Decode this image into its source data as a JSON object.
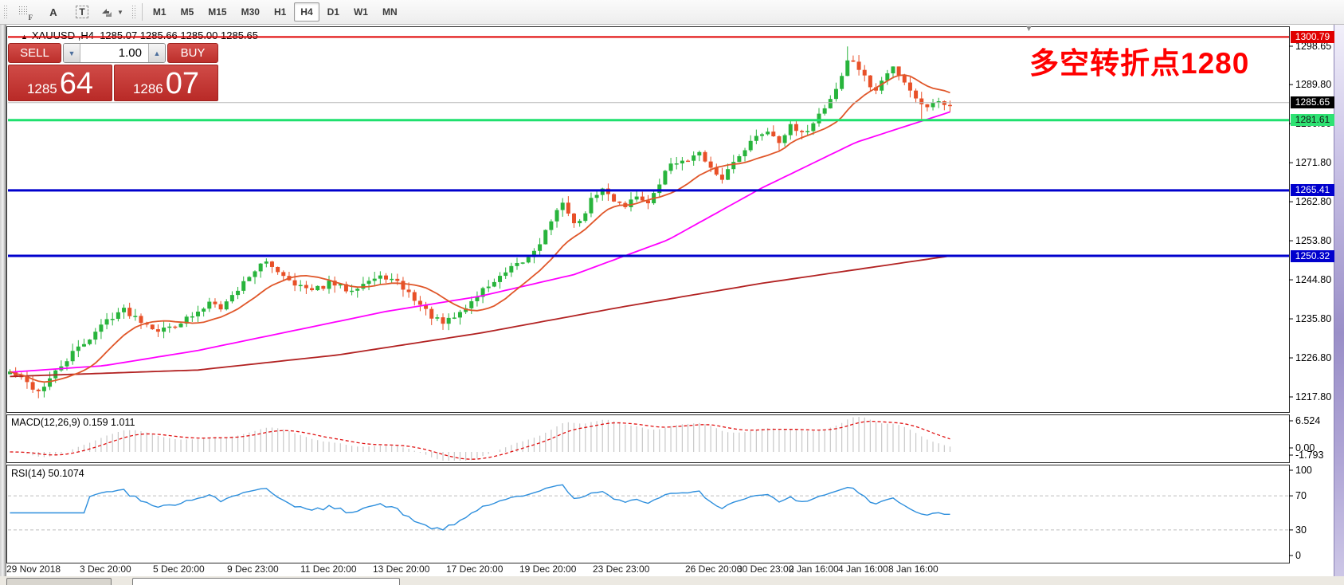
{
  "toolbar": {
    "grip_f": "F",
    "tool_a": "A",
    "tool_t": "T",
    "timeframes": [
      "M1",
      "M5",
      "M15",
      "M30",
      "H1",
      "H4",
      "D1",
      "W1",
      "MN"
    ],
    "active": "H4"
  },
  "chart": {
    "title": "XAUUSD ,H4",
    "ohlc_text": "1285.07 1285.66 1285.00 1285.65",
    "annotation": "多空转折点1280",
    "marker": "▲",
    "shift_marker": "▼"
  },
  "trade_panel": {
    "sell_label": "SELL",
    "buy_label": "BUY",
    "volume": "1.00",
    "spin_down": "▼",
    "spin_up": "▲",
    "sell_small": "1285",
    "sell_big": "64",
    "buy_small": "1286",
    "buy_big": "07"
  },
  "panes": {
    "macd_label": "MACD(12,26,9) 0.159 1.011",
    "rsi_label": "RSI(14) 50.1074"
  },
  "chart_data": {
    "type": "candlestick",
    "symbol": "XAUUSD",
    "timeframe": "H4",
    "visible_price_range": [
      1213.5,
      1302.5
    ],
    "ohlc_current": {
      "open": 1285.07,
      "high": 1285.66,
      "low": 1285.0,
      "close": 1285.65
    },
    "candles_count": 166,
    "candle_colors": {
      "bull": "#28b43c",
      "bear": "#e85028"
    },
    "close_path_keypoints": [
      [
        0.0,
        1223.5
      ],
      [
        0.015,
        1221.5
      ],
      [
        0.03,
        1219.0
      ],
      [
        0.045,
        1222.5
      ],
      [
        0.065,
        1227.5
      ],
      [
        0.085,
        1231.5
      ],
      [
        0.105,
        1236.0
      ],
      [
        0.12,
        1238.0
      ],
      [
        0.14,
        1235.5
      ],
      [
        0.16,
        1233.0
      ],
      [
        0.18,
        1235.0
      ],
      [
        0.2,
        1237.0
      ],
      [
        0.215,
        1240.5
      ],
      [
        0.225,
        1238.5
      ],
      [
        0.24,
        1242.0
      ],
      [
        0.255,
        1246.0
      ],
      [
        0.27,
        1248.8
      ],
      [
        0.285,
        1247.0
      ],
      [
        0.3,
        1244.5
      ],
      [
        0.32,
        1242.0
      ],
      [
        0.34,
        1244.0
      ],
      [
        0.36,
        1242.5
      ],
      [
        0.38,
        1244.5
      ],
      [
        0.4,
        1245.5
      ],
      [
        0.415,
        1243.5
      ],
      [
        0.43,
        1240.5
      ],
      [
        0.445,
        1237.0
      ],
      [
        0.46,
        1234.5
      ],
      [
        0.475,
        1236.5
      ],
      [
        0.49,
        1239.5
      ],
      [
        0.505,
        1243.0
      ],
      [
        0.52,
        1245.0
      ],
      [
        0.535,
        1247.5
      ],
      [
        0.55,
        1249.5
      ],
      [
        0.565,
        1254.0
      ],
      [
        0.578,
        1259.5
      ],
      [
        0.59,
        1262.5
      ],
      [
        0.603,
        1256.5
      ],
      [
        0.615,
        1262.0
      ],
      [
        0.628,
        1266.0
      ],
      [
        0.64,
        1263.5
      ],
      [
        0.655,
        1262.0
      ],
      [
        0.668,
        1264.5
      ],
      [
        0.68,
        1262.0
      ],
      [
        0.693,
        1268.0
      ],
      [
        0.705,
        1272.5
      ],
      [
        0.718,
        1271.5
      ],
      [
        0.73,
        1275.0
      ],
      [
        0.742,
        1271.0
      ],
      [
        0.755,
        1267.5
      ],
      [
        0.768,
        1271.5
      ],
      [
        0.78,
        1275.0
      ],
      [
        0.793,
        1277.5
      ],
      [
        0.805,
        1279.5
      ],
      [
        0.818,
        1277.0
      ],
      [
        0.83,
        1280.0
      ],
      [
        0.843,
        1278.0
      ],
      [
        0.855,
        1281.5
      ],
      [
        0.868,
        1285.0
      ],
      [
        0.878,
        1288.5
      ],
      [
        0.885,
        1292.0
      ],
      [
        0.893,
        1296.2
      ],
      [
        0.9,
        1294.5
      ],
      [
        0.91,
        1291.0
      ],
      [
        0.92,
        1288.0
      ],
      [
        0.93,
        1291.5
      ],
      [
        0.94,
        1294.0
      ],
      [
        0.95,
        1291.0
      ],
      [
        0.96,
        1288.0
      ],
      [
        0.972,
        1284.3
      ],
      [
        0.982,
        1286.2
      ],
      [
        0.992,
        1285.3
      ],
      [
        1.0,
        1285.65
      ]
    ],
    "wick_events": [
      {
        "t": 0.03,
        "low": 1217.5
      },
      {
        "t": 0.893,
        "high": 1298.6
      },
      {
        "t": 0.972,
        "low": 1281.7
      }
    ],
    "horizontal_levels": [
      {
        "price": 1300.79,
        "label": "1300.79",
        "color": "#e00000",
        "width": 2,
        "badge_bg": "#e00000",
        "badge_fg": "#ffffff"
      },
      {
        "price": 1281.61,
        "label": "1281.61",
        "color": "#1fe06e",
        "width": 3,
        "badge_bg": "#2ee273",
        "badge_fg": "#141414"
      },
      {
        "price": 1265.41,
        "label": "1265.41",
        "color": "#0000cd",
        "width": 3,
        "badge_bg": "#0000cd",
        "badge_fg": "#ffffff"
      },
      {
        "price": 1250.32,
        "label": "1250.32",
        "color": "#0000cd",
        "width": 3,
        "badge_bg": "#0000cd",
        "badge_fg": "#ffffff"
      }
    ],
    "current_price": {
      "price": 1285.65,
      "label": "1285.65",
      "line_color": "#b8b8b8",
      "badge_bg": "#000000",
      "badge_fg": "#ffffff"
    },
    "price_ticks": [
      "1298.65",
      "1289.80",
      "1280.80",
      "1271.80",
      "1262.80",
      "1253.80",
      "1244.80",
      "1235.80",
      "1226.80",
      "1217.80"
    ],
    "moving_averages": {
      "fast": {
        "color": "#e0572a",
        "period": 12
      },
      "mid": {
        "color": "#ff00ff",
        "keypoints": [
          [
            0,
            1223.5
          ],
          [
            0.1,
            1225.0
          ],
          [
            0.2,
            1228.5
          ],
          [
            0.3,
            1233.0
          ],
          [
            0.4,
            1237.5
          ],
          [
            0.5,
            1241.0
          ],
          [
            0.55,
            1243.5
          ],
          [
            0.6,
            1246.0
          ],
          [
            0.7,
            1254.0
          ],
          [
            0.8,
            1266.0
          ],
          [
            0.9,
            1276.5
          ],
          [
            1,
            1283.5
          ]
        ]
      },
      "slow": {
        "color": "#b22222",
        "keypoints": [
          [
            0,
            1222.5
          ],
          [
            0.2,
            1224.0
          ],
          [
            0.35,
            1227.5
          ],
          [
            0.5,
            1232.5
          ],
          [
            0.65,
            1238.5
          ],
          [
            0.8,
            1244.0
          ],
          [
            1,
            1250.3
          ]
        ]
      }
    },
    "macd": {
      "fast": 12,
      "slow": 26,
      "signal": 9,
      "main_value": 0.159,
      "signal_value": 1.011,
      "hist_color": "#c8c8c8",
      "signal_color": "#e01010",
      "axis_labels": [
        "6.524",
        "0.00",
        "-1.793"
      ]
    },
    "rsi": {
      "period": 14,
      "value": 50.1074,
      "color": "#2e8fdd",
      "levels": [
        70,
        30
      ],
      "axis_labels": [
        "100",
        "70",
        "30",
        "0"
      ]
    },
    "time_labels": [
      "29 Nov 2018",
      "3 Dec 20:00",
      "5 Dec 20:00",
      "9 Dec 23:00",
      "11 Dec 20:00",
      "13 Dec 20:00",
      "17 Dec 20:00",
      "19 Dec 20:00",
      "23 Dec 23:00",
      "26 Dec 20:00",
      "30 Dec 23:00",
      "2 Jan 16:00",
      "4 Jan 16:00",
      "8 Jan 16:00"
    ]
  }
}
